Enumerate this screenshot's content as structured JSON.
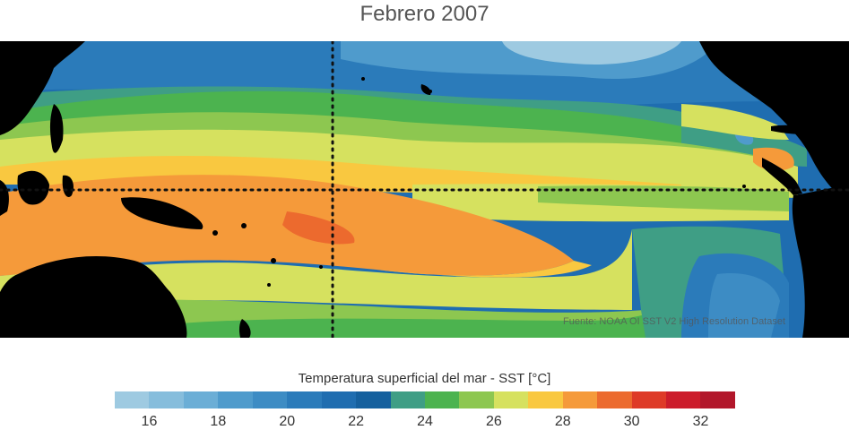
{
  "title": "Febrero 2007",
  "source_note": "Fuente: NOAA OI SST V2 High Resolution Dataset",
  "colorbar": {
    "label": "Temperatura superficial del mar - SST  [°C]",
    "min": 15,
    "max": 33,
    "ticks": [
      "16",
      "18",
      "20",
      "22",
      "24",
      "26",
      "28",
      "30",
      "32"
    ],
    "colors": [
      "#9ecae1",
      "#86bddc",
      "#6baed6",
      "#4f9bcc",
      "#3d8cc4",
      "#2b7bba",
      "#1f6db0",
      "#15609e",
      "#3f9e85",
      "#4cb34f",
      "#8dc750",
      "#d6e15f",
      "#f9c840",
      "#f59a3a",
      "#ec6a2e",
      "#de3a27",
      "#cc1c2b",
      "#b2172b"
    ]
  },
  "map": {
    "land_color": "#000000",
    "equator_label": "",
    "dateline_label": ""
  }
}
